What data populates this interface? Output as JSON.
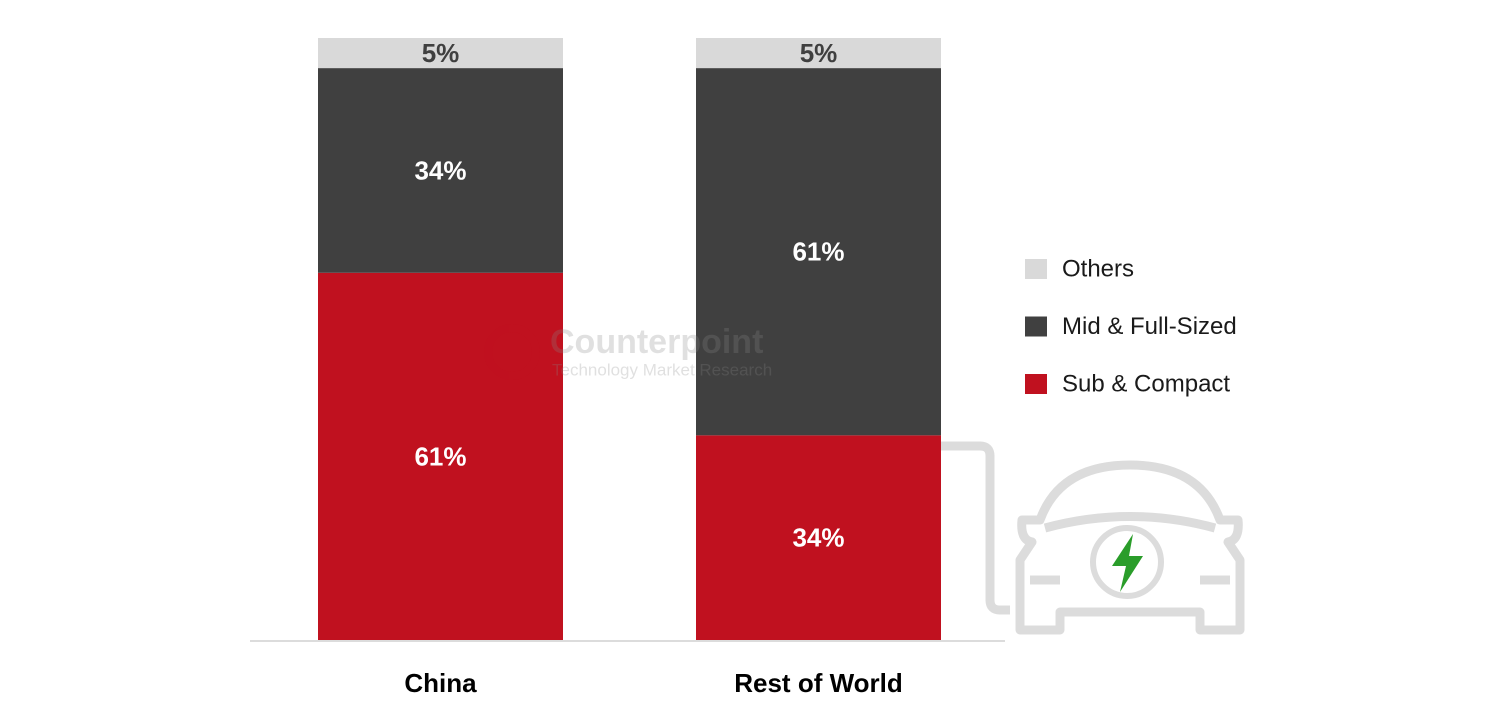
{
  "chart_data": {
    "type": "stacked-bar",
    "categories": [
      "China",
      "Rest of World"
    ],
    "series": [
      {
        "name": "Sub & Compact",
        "color": "#c0111f",
        "values": [
          61,
          34
        ],
        "value_labels": [
          "61%",
          "34%"
        ],
        "label_color": "#ffffff"
      },
      {
        "name": "Mid & Full-Sized",
        "color": "#404040",
        "values": [
          34,
          61
        ],
        "value_labels": [
          "34%",
          "61%"
        ],
        "label_color": "#ffffff"
      },
      {
        "name": "Others",
        "color": "#d9d9d9",
        "values": [
          5,
          5
        ],
        "value_labels": [
          "5%",
          "5%"
        ],
        "label_color": "#404040"
      }
    ],
    "legend": "right",
    "watermark": {
      "name": "Counterpoint",
      "tagline": "Technology Market Research"
    }
  }
}
